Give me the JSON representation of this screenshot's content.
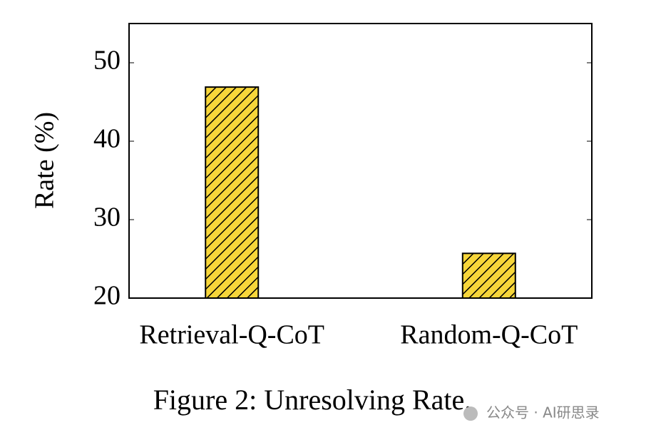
{
  "chart_data": {
    "type": "bar",
    "ylabel": "Rate (%)",
    "categories": [
      "Retrieval-Q-CoT",
      "Random-Q-CoT"
    ],
    "values": [
      46.9,
      25.7
    ],
    "color": "#f7d63a",
    "ylim": [
      20,
      55
    ],
    "yticks": [
      20,
      30,
      40,
      50
    ],
    "hatch": true
  },
  "caption": "Figure 2: Unresolving Rate.",
  "watermark": "公众号 · AI研思录"
}
